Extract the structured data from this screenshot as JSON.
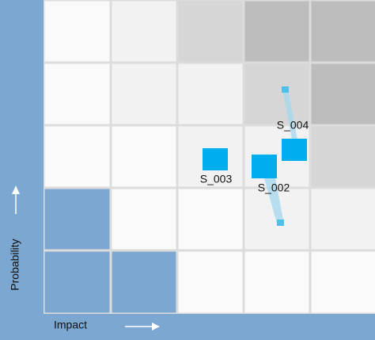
{
  "axes": {
    "x_label": "Impact",
    "y_label": "Probability"
  },
  "items": [
    {
      "label": "S_003"
    },
    {
      "label": "S_002"
    },
    {
      "label": "S_004"
    }
  ]
}
